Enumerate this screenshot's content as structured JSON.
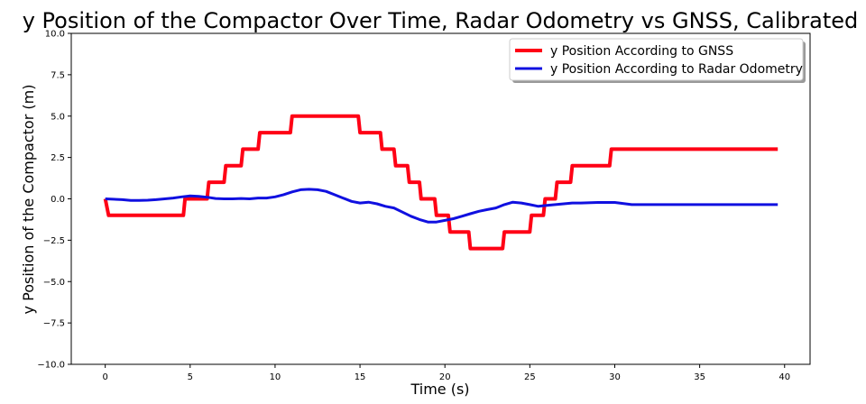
{
  "chart_data": {
    "type": "line",
    "title": "y Position of the Compactor Over Time, Radar Odometry vs GNSS, Calibrated",
    "xlabel": "Time (s)",
    "ylabel": "y Position of the Compactor (m)",
    "xlim": [
      -2,
      41.5
    ],
    "ylim": [
      -10,
      10
    ],
    "xticks": [
      0,
      5,
      10,
      15,
      20,
      25,
      30,
      35,
      40
    ],
    "yticks": [
      -10,
      -7.5,
      -5,
      -2.5,
      0,
      2.5,
      5,
      7.5,
      10
    ],
    "xtick_labels": [
      "0",
      "5",
      "10",
      "15",
      "20",
      "25",
      "30",
      "35",
      "40"
    ],
    "ytick_labels": [
      "−10.0",
      "−7.5",
      "−5.0",
      "−2.5",
      "0.0",
      "2.5",
      "5.0",
      "7.5",
      "10.0"
    ],
    "grid": false,
    "legend": "top-right",
    "series": [
      {
        "name": "y Position According to GNSS",
        "color": "#ff0015",
        "x": [
          0.0,
          0.2,
          4.6,
          4.7,
          6.0,
          6.1,
          7.0,
          7.1,
          8.0,
          8.1,
          9.0,
          9.1,
          10.9,
          11.0,
          14.9,
          15.0,
          16.2,
          16.3,
          17.0,
          17.1,
          17.8,
          17.9,
          18.5,
          18.6,
          19.4,
          19.5,
          20.2,
          20.3,
          21.4,
          21.5,
          23.4,
          23.5,
          25.0,
          25.1,
          25.8,
          25.9,
          26.5,
          26.6,
          27.4,
          27.5,
          29.7,
          29.8,
          39.6
        ],
        "y": [
          0,
          -1,
          -1,
          0,
          0,
          1,
          1,
          2,
          2,
          3,
          3,
          4,
          4,
          5,
          5,
          4,
          4,
          3,
          3,
          2,
          2,
          1,
          1,
          0,
          0,
          -1,
          -1,
          -2,
          -2,
          -3,
          -3,
          -2,
          -2,
          -1,
          -1,
          0,
          0,
          1,
          1,
          2,
          2,
          3,
          3
        ]
      },
      {
        "name": "y Position According to Radar Odometry",
        "color": "#1010e0",
        "x": [
          0,
          1,
          1.5,
          2,
          2.5,
          3,
          3.5,
          4,
          4.5,
          5,
          5.5,
          6,
          6.5,
          7,
          7.5,
          8,
          8.5,
          9,
          9.5,
          10,
          10.5,
          11,
          11.5,
          12,
          12.5,
          13,
          13.5,
          14,
          14.5,
          15,
          15.5,
          16,
          16.5,
          17,
          17.5,
          18,
          18.5,
          19,
          19.5,
          20,
          20.5,
          21,
          21.5,
          22,
          22.5,
          23,
          23.5,
          24,
          24.5,
          25,
          25.5,
          26,
          26.5,
          27,
          27.5,
          28,
          29,
          30,
          31,
          32,
          35,
          39.6
        ],
        "y": [
          0.0,
          -0.05,
          -0.1,
          -0.1,
          -0.08,
          -0.05,
          0.0,
          0.05,
          0.12,
          0.18,
          0.15,
          0.1,
          0.02,
          0.0,
          0.0,
          0.02,
          0.0,
          0.05,
          0.05,
          0.12,
          0.25,
          0.42,
          0.55,
          0.58,
          0.55,
          0.45,
          0.25,
          0.05,
          -0.15,
          -0.25,
          -0.2,
          -0.3,
          -0.45,
          -0.55,
          -0.8,
          -1.05,
          -1.25,
          -1.4,
          -1.4,
          -1.3,
          -1.2,
          -1.05,
          -0.9,
          -0.75,
          -0.65,
          -0.55,
          -0.35,
          -0.2,
          -0.25,
          -0.35,
          -0.45,
          -0.4,
          -0.35,
          -0.3,
          -0.25,
          -0.25,
          -0.22,
          -0.22,
          -0.35,
          -0.35,
          -0.35,
          -0.35
        ]
      }
    ]
  }
}
